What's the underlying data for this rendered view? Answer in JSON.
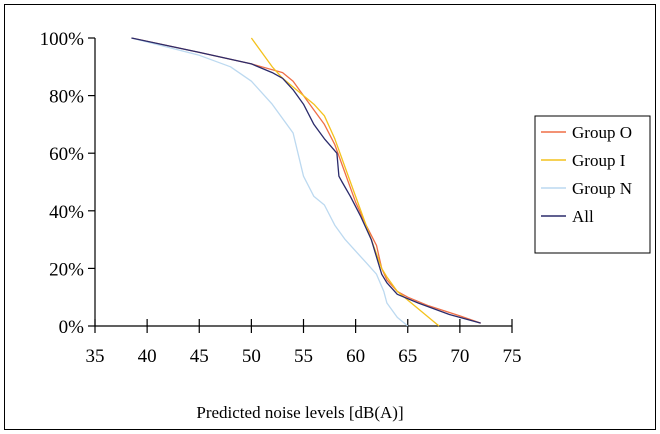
{
  "chart_data": {
    "type": "line",
    "title": "",
    "xlabel": "Predicted noise levels [dB(A)]",
    "ylabel": "",
    "xlim": [
      35,
      75
    ],
    "ylim": [
      0,
      100
    ],
    "x_ticks": [
      "35",
      "40",
      "45",
      "50",
      "55",
      "60",
      "65",
      "70",
      "75"
    ],
    "y_ticks": [
      "0%",
      "20%",
      "40%",
      "60%",
      "80%",
      "100%"
    ],
    "grid": false,
    "legend_position": "right",
    "series": [
      {
        "name": "Group O",
        "color": "#ef6f47",
        "points": [
          [
            38.5,
            100
          ],
          [
            45,
            95
          ],
          [
            50,
            91
          ],
          [
            53,
            88
          ],
          [
            54,
            85
          ],
          [
            55,
            80
          ],
          [
            56,
            75
          ],
          [
            57,
            70
          ],
          [
            58,
            63
          ],
          [
            59,
            53
          ],
          [
            60,
            43
          ],
          [
            61,
            35
          ],
          [
            62,
            28
          ],
          [
            62.5,
            20
          ],
          [
            63,
            16
          ],
          [
            64,
            12
          ],
          [
            65,
            10
          ],
          [
            67,
            7
          ],
          [
            70,
            3.5
          ],
          [
            72,
            1
          ]
        ]
      },
      {
        "name": "Group I",
        "color": "#f4c21d",
        "points": [
          [
            50,
            100
          ],
          [
            51,
            95
          ],
          [
            52,
            90
          ],
          [
            53,
            86
          ],
          [
            54,
            83
          ],
          [
            55,
            80
          ],
          [
            56,
            77
          ],
          [
            57,
            73
          ],
          [
            58,
            65
          ],
          [
            59,
            55
          ],
          [
            60,
            45
          ],
          [
            61,
            35
          ],
          [
            62,
            25
          ],
          [
            62.5,
            20
          ],
          [
            63,
            17
          ],
          [
            64,
            12
          ],
          [
            65,
            9
          ],
          [
            66,
            6
          ],
          [
            67,
            3
          ],
          [
            68,
            0
          ]
        ]
      },
      {
        "name": "Group N",
        "color": "#bcd9f0",
        "points": [
          [
            38.5,
            100
          ],
          [
            45,
            94
          ],
          [
            48,
            90
          ],
          [
            50,
            85
          ],
          [
            52,
            77
          ],
          [
            54,
            67
          ],
          [
            55,
            52
          ],
          [
            56,
            45
          ],
          [
            57,
            42
          ],
          [
            58,
            35
          ],
          [
            59,
            30
          ],
          [
            60,
            26
          ],
          [
            61,
            22
          ],
          [
            62,
            18
          ],
          [
            62.7,
            12
          ],
          [
            63,
            8
          ],
          [
            64,
            3
          ],
          [
            65,
            0
          ]
        ]
      },
      {
        "name": "All",
        "color": "#2b2b6b",
        "points": [
          [
            38.5,
            100
          ],
          [
            45,
            95
          ],
          [
            50,
            91
          ],
          [
            52,
            88
          ],
          [
            53,
            86
          ],
          [
            54,
            82
          ],
          [
            55,
            77
          ],
          [
            56,
            70
          ],
          [
            57,
            65
          ],
          [
            58.2,
            60
          ],
          [
            58.4,
            52
          ],
          [
            58.7,
            50
          ],
          [
            59.5,
            45
          ],
          [
            60.5,
            38
          ],
          [
            61.5,
            30
          ],
          [
            62.5,
            18
          ],
          [
            63,
            15
          ],
          [
            64,
            11
          ],
          [
            66,
            8
          ],
          [
            69,
            4
          ],
          [
            72,
            1
          ]
        ]
      }
    ]
  }
}
